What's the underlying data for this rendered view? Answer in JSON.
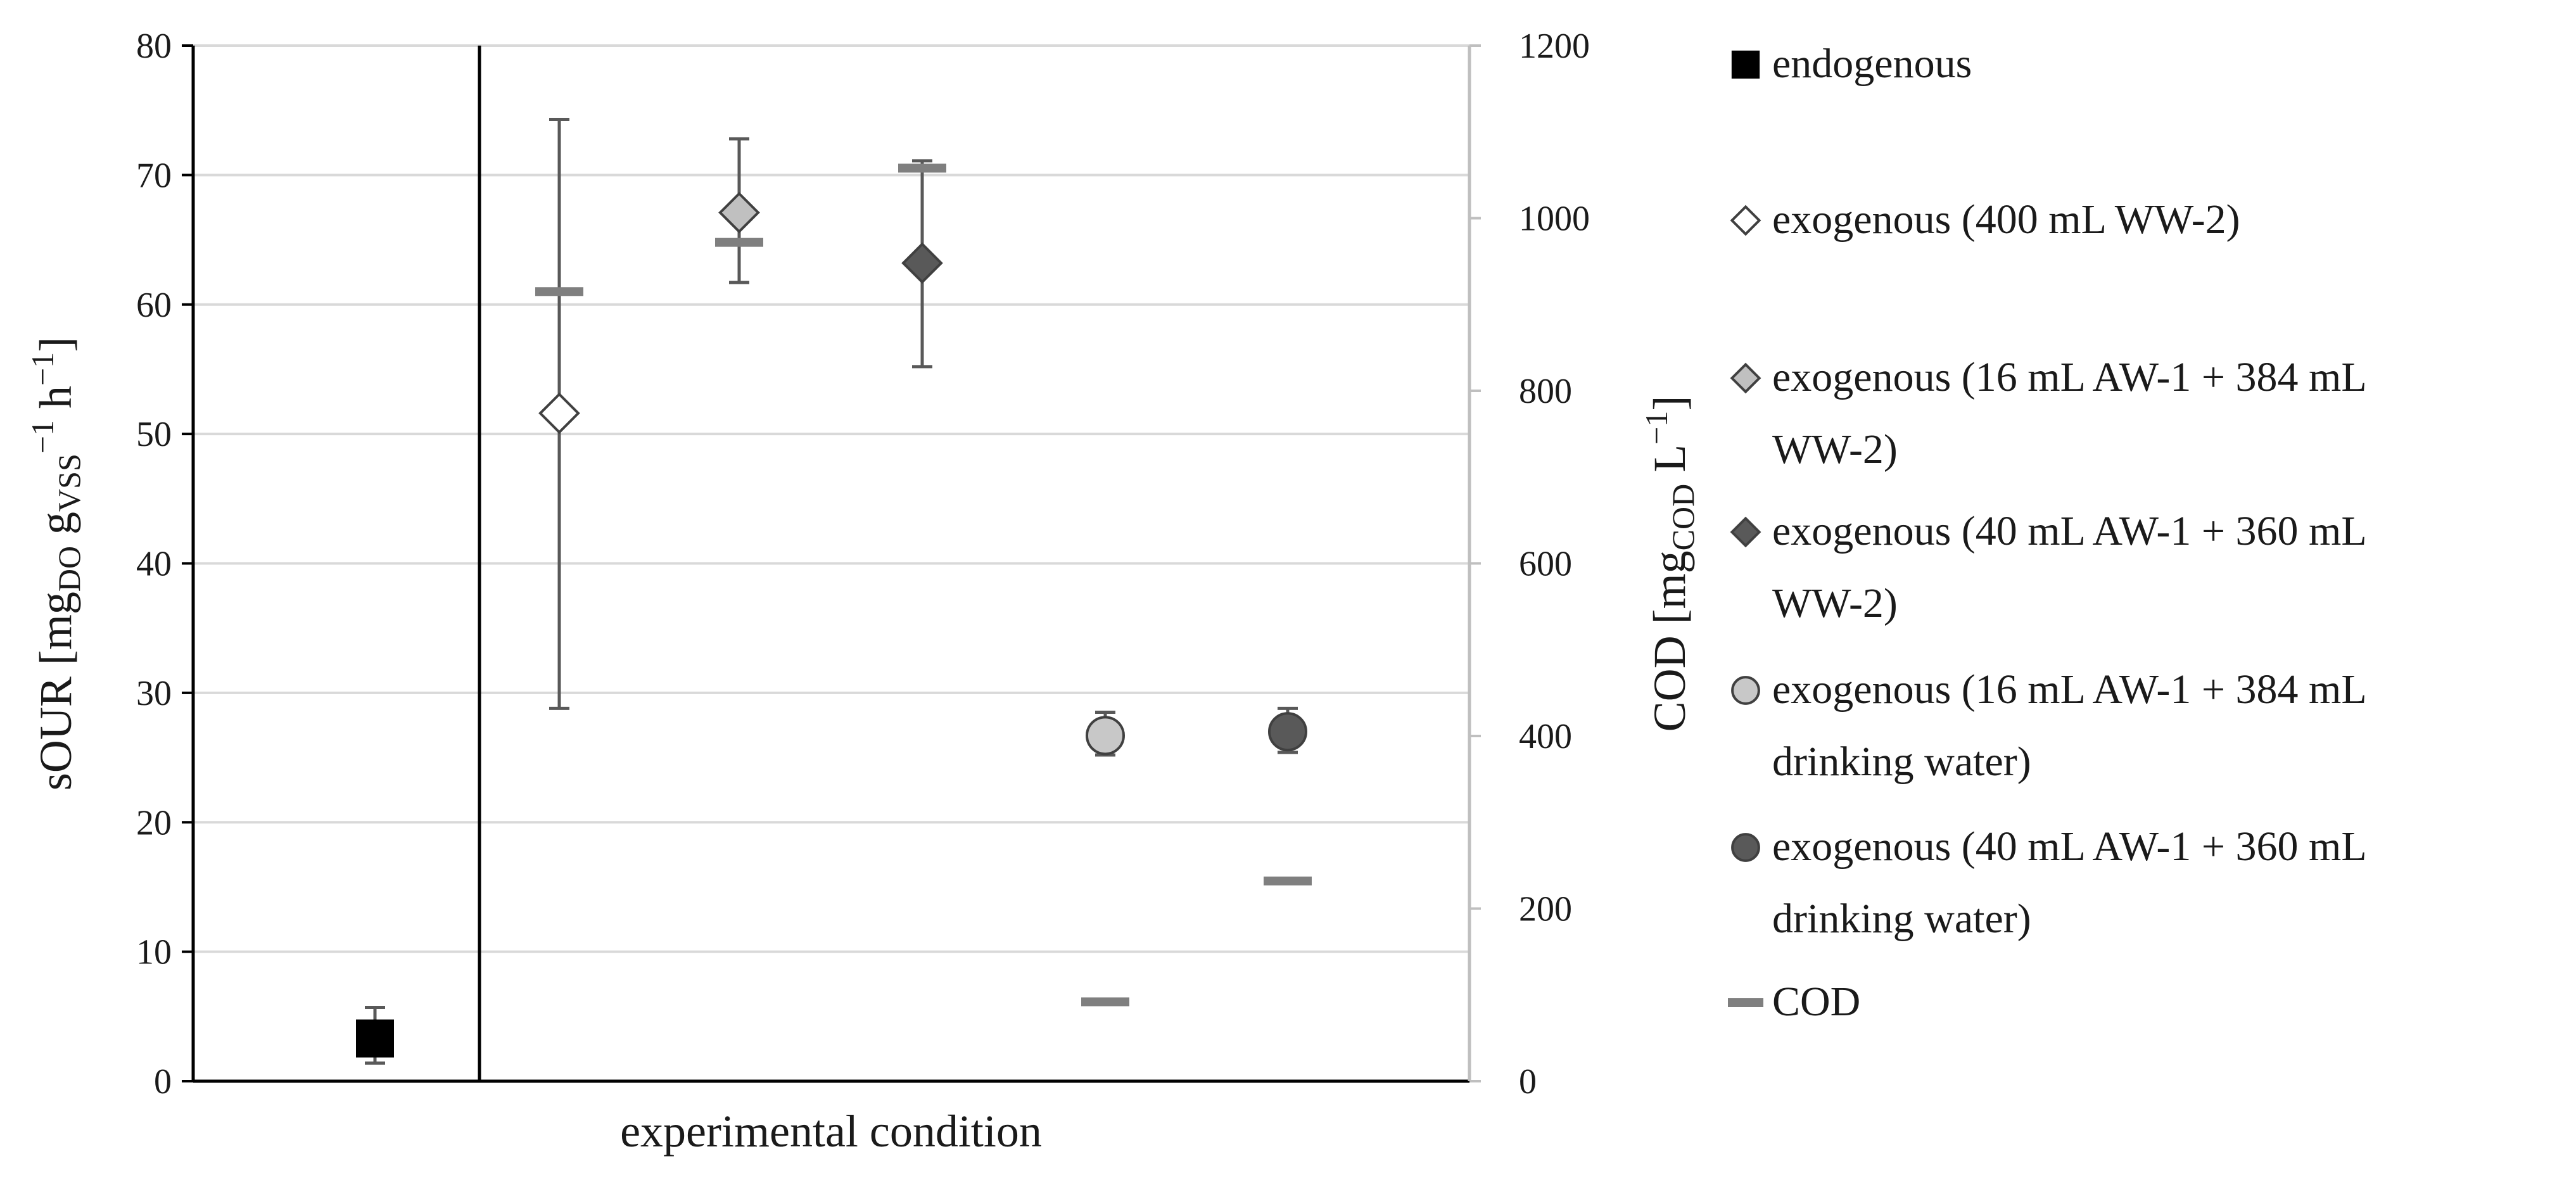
{
  "chart_data": {
    "type": "scatter",
    "title": "",
    "xlabel": "experimental condition",
    "ylabel": {
      "main": "sOUR [mg",
      "sub1": "DO",
      "mid": " g",
      "sub2": "VSS",
      "sup1": "−1",
      "mid2": " h",
      "sup2": "−1",
      "end": "]"
    },
    "y2label": {
      "main": "COD [mg",
      "sub": "COD",
      "mid": " L",
      "sup": "−1",
      "end": "]"
    },
    "ylim": [
      0,
      80
    ],
    "y2lim": [
      0,
      1200
    ],
    "yticks": [
      "0",
      "10",
      "20",
      "30",
      "40",
      "50",
      "60",
      "70",
      "80"
    ],
    "y2ticks": [
      "0",
      "200",
      "400",
      "600",
      "800",
      "1000",
      "1200"
    ],
    "grid": true,
    "legend_position": "right",
    "colors": {
      "endogenous": "#000000",
      "diamond_light": "#c0c0c0",
      "diamond_dark": "#595959",
      "circle_light": "#c8c8c8",
      "circle_dark": "#595959",
      "cod": "#7f7f7f",
      "errorbar": "#595959",
      "gridline": "#d9d9d9",
      "secondary_axis": "#bfbfbf"
    },
    "series": [
      {
        "name": "endogenous",
        "marker": "square",
        "fill": "#000000",
        "x": 1,
        "y": 3.3,
        "err_low": 1.4,
        "err_high": 5.7
      },
      {
        "name": "exogenous (400 mL WW-2)",
        "marker": "diamond",
        "fill": "#ffffff",
        "x": 2,
        "y": 51.6,
        "err_low": 28.8,
        "err_high": 74.3
      },
      {
        "name": "exogenous (16 mL AW-1 + 384 mL WW-2)",
        "marker": "diamond",
        "fill": "#c0c0c0",
        "x": 3,
        "y": 67.1,
        "err_low": 61.7,
        "err_high": 72.8
      },
      {
        "name": "exogenous (40 mL AW-1 + 360 mL WW-2)",
        "marker": "diamond",
        "fill": "#595959",
        "x": 4,
        "y": 63.2,
        "err_low": 55.2,
        "err_high": 71.1
      },
      {
        "name": "exogenous (16 mL AW-1 + 384 mL drinking water)",
        "marker": "circle",
        "fill": "#c8c8c8",
        "x": 5,
        "y": 26.7,
        "err_low": 25.2,
        "err_high": 28.5
      },
      {
        "name": "exogenous (40 mL AW-1 + 360 mL drinking water)",
        "marker": "circle",
        "fill": "#595959",
        "x": 6,
        "y": 27.0,
        "err_low": 25.4,
        "err_high": 28.8
      }
    ],
    "cod": {
      "name": "COD",
      "axis": "secondary",
      "points": [
        {
          "x": 2,
          "y": 915
        },
        {
          "x": 3,
          "y": 972
        },
        {
          "x": 4,
          "y": 1058
        },
        {
          "x": 5,
          "y": 92
        },
        {
          "x": 6,
          "y": 232
        }
      ]
    },
    "legend": [
      {
        "label": "endogenous",
        "marker": "square",
        "fill": "#000000",
        "lines": [
          "endogenous"
        ]
      },
      {
        "label": "exogenous (400 mL WW-2)",
        "marker": "diamond",
        "fill": "#ffffff",
        "lines": [
          "exogenous (400 mL WW-2)"
        ]
      },
      {
        "label": "exogenous (16 mL AW-1 + 384 mL WW-2)",
        "marker": "diamond",
        "fill": "#c0c0c0",
        "lines": [
          "exogenous (16 mL AW-1 + 384 mL",
          "WW-2)"
        ]
      },
      {
        "label": "exogenous (40 mL AW-1 + 360 mL WW-2)",
        "marker": "diamond",
        "fill": "#595959",
        "lines": [
          "exogenous (40 mL AW-1 + 360 mL",
          "WW-2)"
        ]
      },
      {
        "label": "exogenous (16 mL AW-1 + 384 mL drinking water)",
        "marker": "circle",
        "fill": "#c8c8c8",
        "lines": [
          "exogenous (16 mL AW-1 + 384 mL",
          "drinking water)"
        ]
      },
      {
        "label": "exogenous (40 mL AW-1 + 360 mL drinking water)",
        "marker": "circle",
        "fill": "#595959",
        "lines": [
          "exogenous (40 mL AW-1 + 360 mL",
          "drinking water)"
        ]
      },
      {
        "label": "COD",
        "marker": "dash",
        "fill": "#7f7f7f",
        "lines": [
          "COD"
        ]
      }
    ]
  }
}
